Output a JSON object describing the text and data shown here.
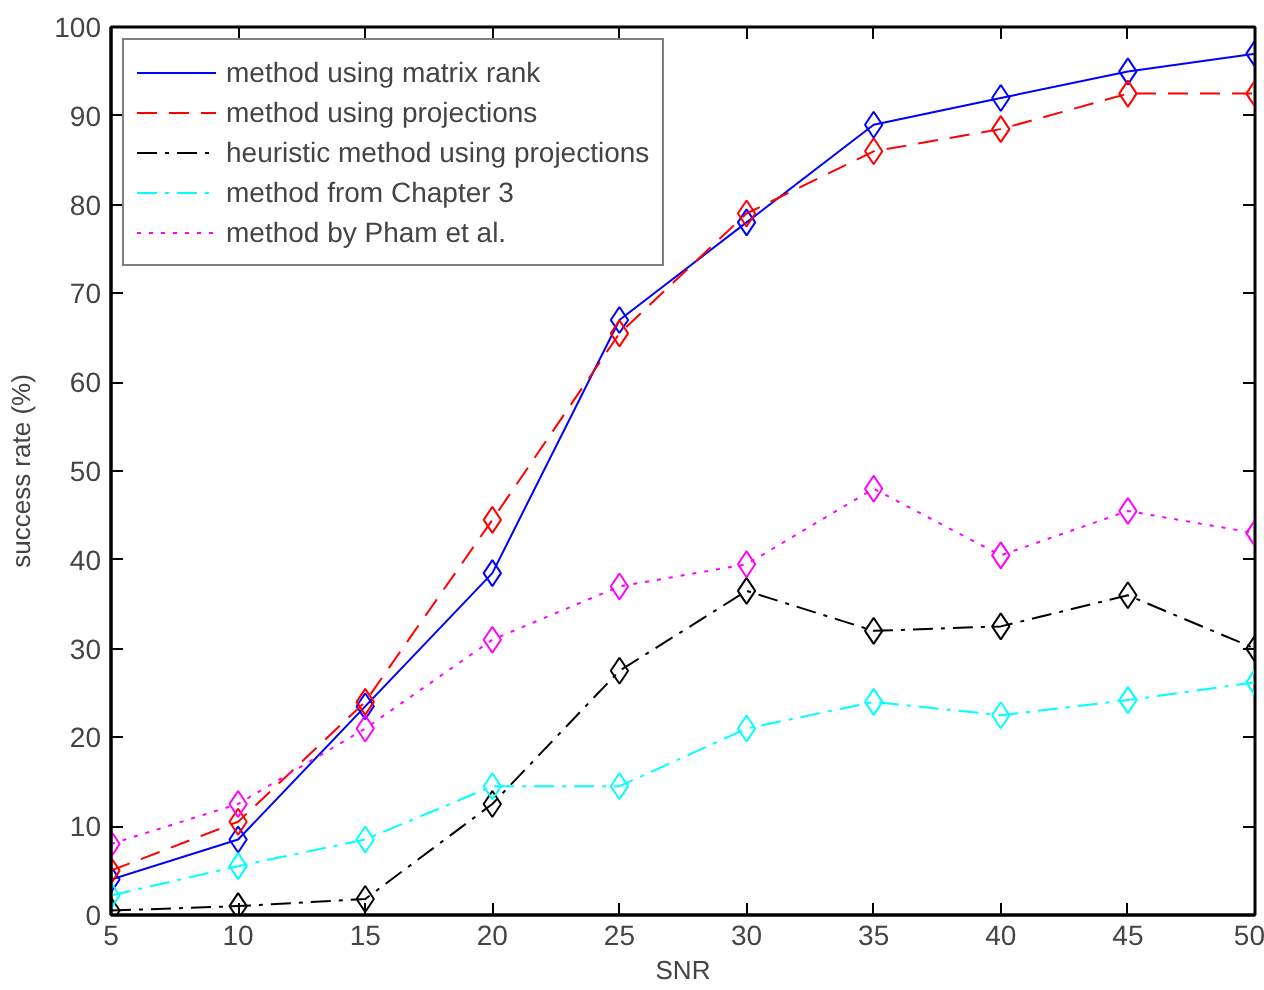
{
  "chart_data": {
    "type": "line",
    "xlabel": "SNR",
    "ylabel": "success rate (%)",
    "x": [
      5,
      10,
      15,
      20,
      25,
      30,
      35,
      40,
      45,
      50
    ],
    "xlim": [
      5,
      50
    ],
    "ylim": [
      0,
      100
    ],
    "xticks": [
      5,
      10,
      15,
      20,
      25,
      30,
      35,
      40,
      45,
      50
    ],
    "yticks": [
      0,
      10,
      20,
      30,
      40,
      50,
      60,
      70,
      80,
      90,
      100
    ],
    "grid": false,
    "legend": "top left",
    "marker": "diamond",
    "series": [
      {
        "name": "method using matrix rank",
        "color": "#0000ff",
        "line_style": "solid",
        "values": [
          4,
          8.5,
          23.5,
          38.5,
          67,
          78,
          89,
          92,
          95,
          97
        ]
      },
      {
        "name": "method using projections",
        "color": "#ff0000",
        "line_style": "dashed",
        "values": [
          5,
          10.5,
          24,
          44.5,
          65.5,
          79,
          86,
          88.5,
          92.5,
          92.5
        ]
      },
      {
        "name": "heuristic method using projections",
        "color": "#000000",
        "line_style": "dashdot",
        "values": [
          0.5,
          1,
          1.8,
          12.5,
          27.5,
          36.5,
          32,
          32.5,
          36,
          30
        ]
      },
      {
        "name": "method from Chapter 3",
        "color": "#00ffff",
        "line_style": "dashdot",
        "values": [
          2.2,
          5.5,
          8.5,
          14.5,
          14.5,
          21,
          24,
          22.5,
          24.2,
          26.2
        ]
      },
      {
        "name": "method by Pham et al.",
        "color": "#ff00ff",
        "line_style": "dotted",
        "values": [
          8,
          12.5,
          21,
          31,
          37,
          39.5,
          48,
          40.5,
          45.5,
          43
        ]
      }
    ]
  }
}
